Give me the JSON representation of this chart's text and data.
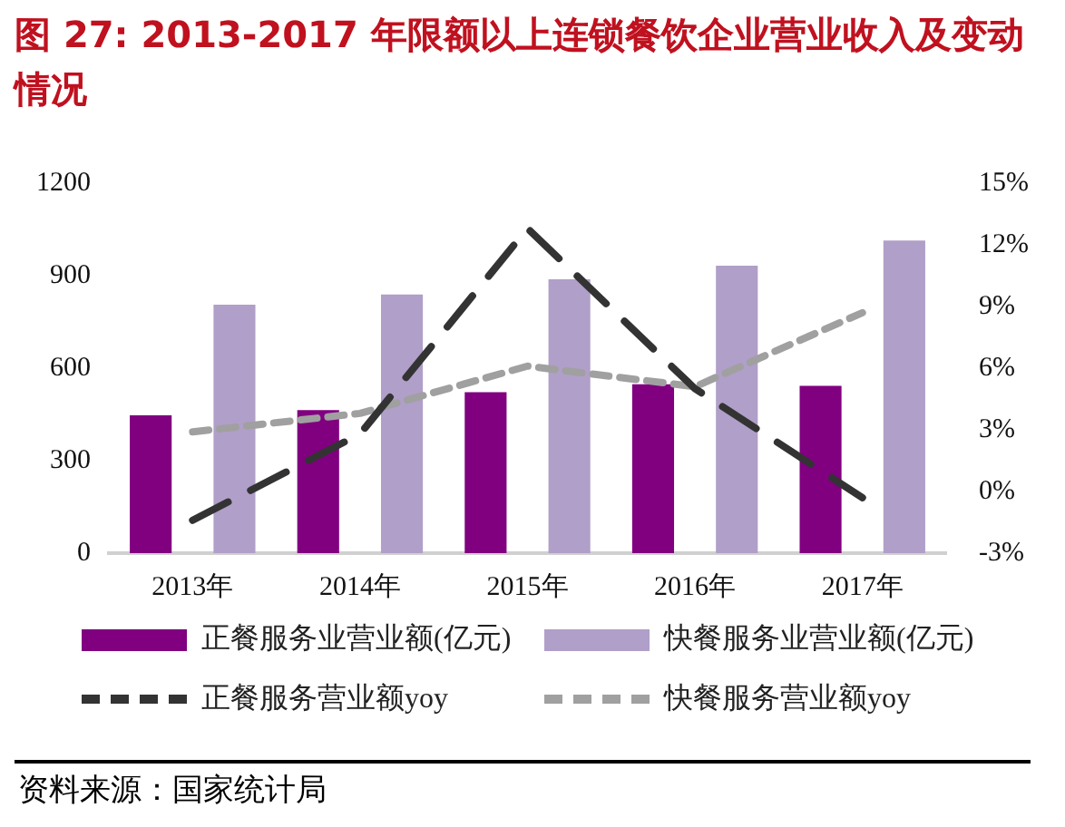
{
  "chart_data": {
    "type": "bar",
    "title": "图 27: 2013-2017 年限额以上连锁餐饮企业营业收入及变动情况",
    "categories": [
      "2013年",
      "2014年",
      "2015年",
      "2016年",
      "2017年"
    ],
    "series": [
      {
        "name": "正餐服务业营业额(亿元)",
        "color": "#800080",
        "values": [
          447,
          464,
          522,
          548,
          543
        ]
      },
      {
        "name": "快餐服务业营业额(亿元)",
        "color": "#b09fc8",
        "values": [
          806,
          839,
          888,
          932,
          1014
        ]
      },
      {
        "name": "正餐服务营业额yoy",
        "type": "line",
        "axis": "y2",
        "color": "#333333",
        "line_style": "dashed",
        "values": [
          -1.4,
          2.8,
          12.8,
          5.0,
          -0.3
        ]
      },
      {
        "name": "快餐服务营业额yoy",
        "type": "line",
        "axis": "y2",
        "color": "#a0a0a0",
        "line_style": "dotted",
        "values": [
          2.9,
          3.8,
          6.1,
          5.1,
          8.7
        ]
      }
    ],
    "ylim": [
      0,
      1200
    ],
    "yticks": [
      0,
      300,
      600,
      900,
      1200
    ],
    "y2lim": [
      -3,
      15
    ],
    "y2ticks": [
      {
        "value": -3,
        "label": "-3%"
      },
      {
        "value": 0,
        "label": "0%"
      },
      {
        "value": 3,
        "label": "3%"
      },
      {
        "value": 6,
        "label": "6%"
      },
      {
        "value": 9,
        "label": "9%"
      },
      {
        "value": 12,
        "label": "12%"
      },
      {
        "value": 15,
        "label": "15%"
      }
    ],
    "grid": false,
    "legend": "bottom",
    "marker": "none",
    "annotations": [
      "资料来源：国家统计局"
    ]
  }
}
